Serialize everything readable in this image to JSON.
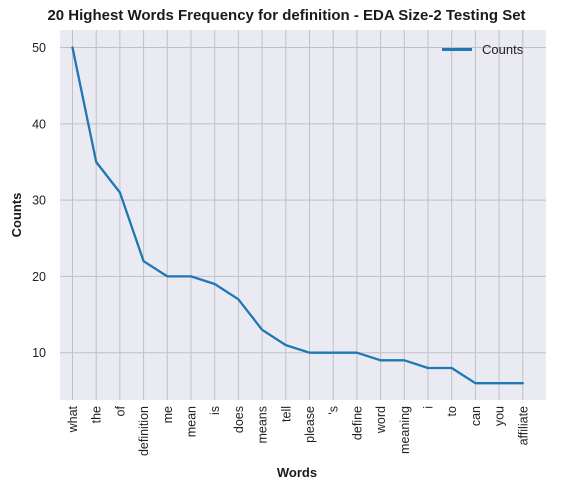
{
  "chart_data": {
    "type": "line",
    "title": "20 Highest Words Frequency for definition - EDA Size-2 Testing Set",
    "xlabel": "Words",
    "ylabel": "Counts",
    "categories": [
      "what",
      "the",
      "of",
      "definition",
      "me",
      "mean",
      "is",
      "does",
      "means",
      "tell",
      "please",
      "'s",
      "define",
      "word",
      "meaning",
      "i",
      "to",
      "can",
      "you",
      "affiliate"
    ],
    "series": [
      {
        "name": "Counts",
        "values": [
          50,
          35,
          31,
          22,
          20,
          20,
          19,
          17,
          13,
          11,
          10,
          10,
          10,
          9,
          9,
          8,
          8,
          6,
          6,
          6
        ]
      }
    ],
    "yticks": [
      "10",
      "20",
      "30",
      "40",
      "50"
    ],
    "ylim": [
      3.8,
      52.3
    ],
    "grid": true,
    "legend_position": "top-right",
    "colors": {
      "line": "#1f77b4",
      "plot_background": "#eaeaf2",
      "grid": "#c0c0c8"
    }
  }
}
